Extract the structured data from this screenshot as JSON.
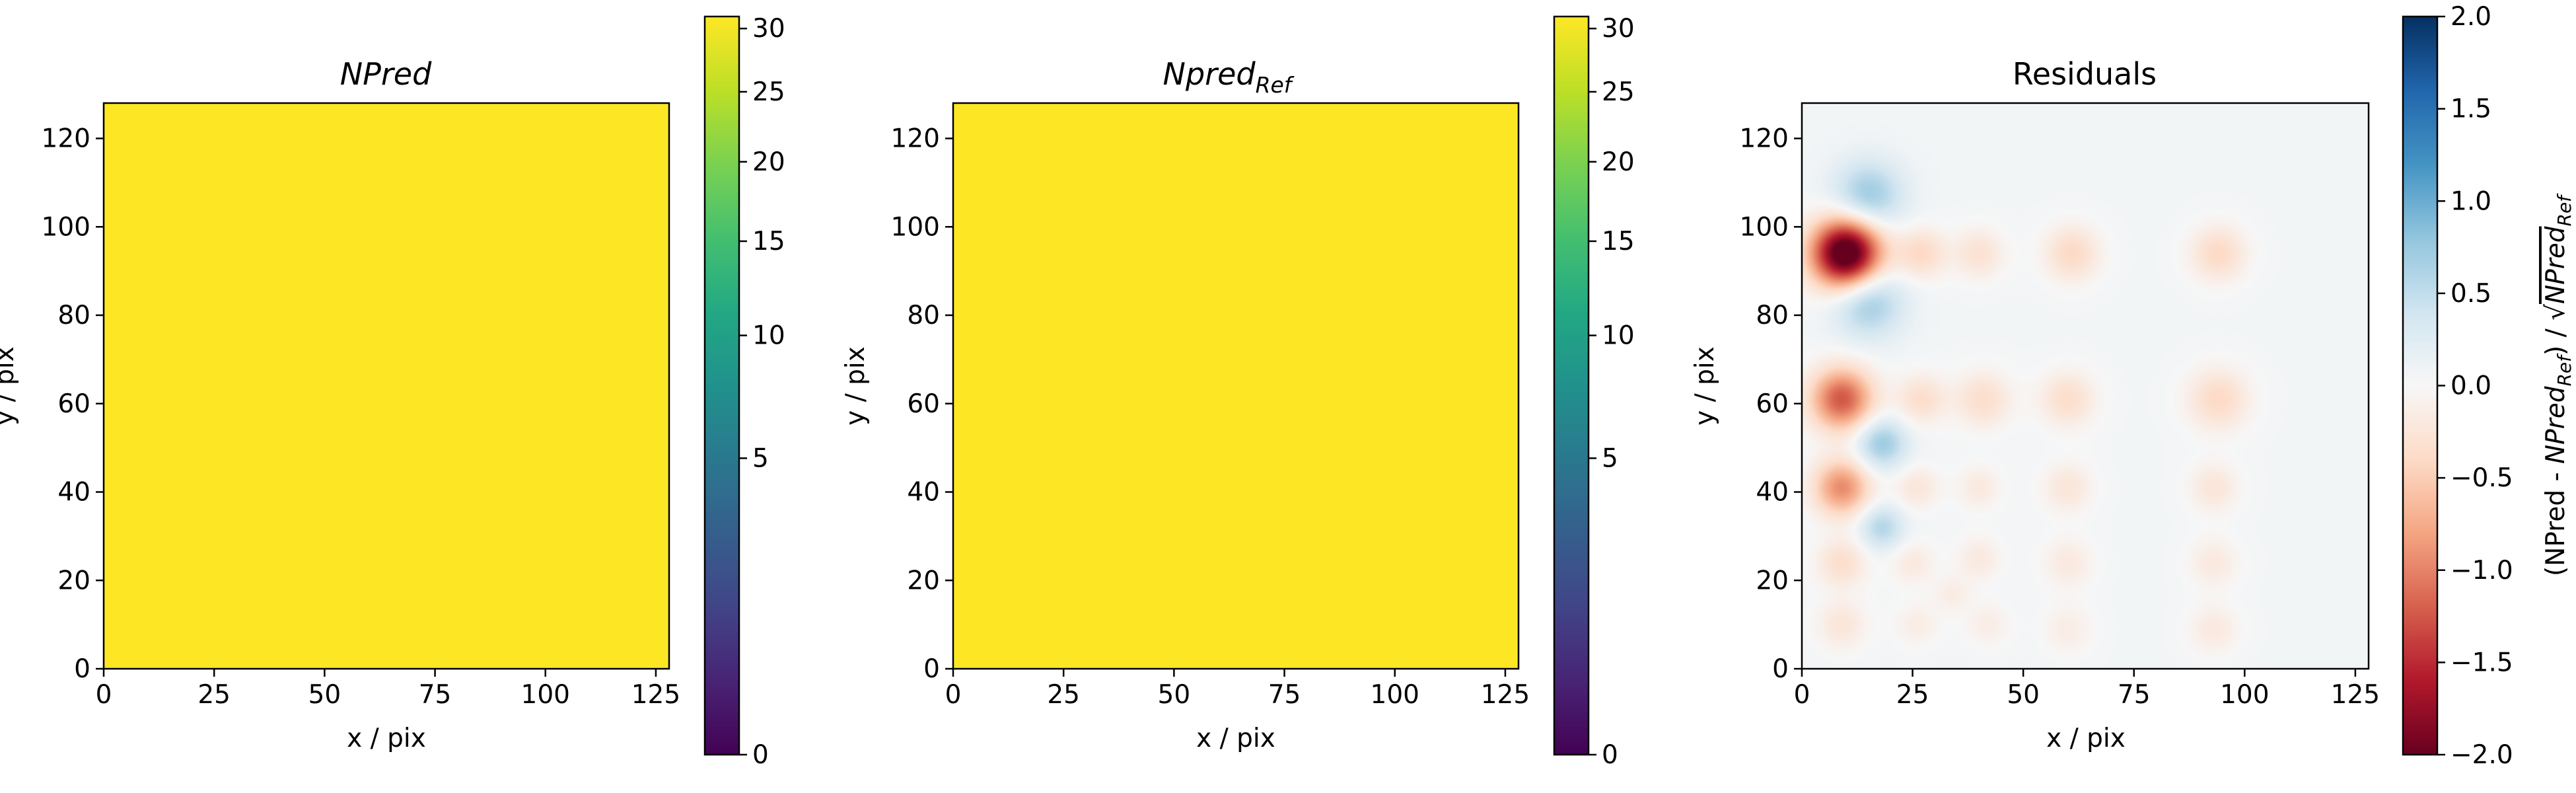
{
  "colors": {
    "viridis_top": "#fde725",
    "viridis_bottom": "#440154",
    "rdbu_low": "#67001f",
    "rdbu_mid": "#f7f7f7",
    "rdbu_high": "#053061"
  },
  "chart_data": [
    {
      "type": "heatmap",
      "title": "NPred",
      "title_italic": true,
      "xlabel": "x / pix",
      "ylabel": "y / pix",
      "xlim": [
        0,
        128
      ],
      "ylim": [
        0,
        128
      ],
      "xticks": [
        0,
        25,
        50,
        75,
        100,
        125
      ],
      "yticks": [
        0,
        20,
        40,
        60,
        80,
        100,
        120
      ],
      "colormap": "viridis",
      "colorbar": {
        "scale": "sqrt",
        "range": [
          0,
          31
        ],
        "ticks": [
          0,
          5,
          10,
          15,
          20,
          25,
          30
        ],
        "label": ""
      },
      "field": {
        "kind": "uniform",
        "value": 31
      }
    },
    {
      "type": "heatmap",
      "title": "Npred",
      "title_sub": "Ref",
      "title_italic": true,
      "xlabel": "x / pix",
      "ylabel": "y / pix",
      "xlim": [
        0,
        128
      ],
      "ylim": [
        0,
        128
      ],
      "xticks": [
        0,
        25,
        50,
        75,
        100,
        125
      ],
      "yticks": [
        0,
        20,
        40,
        60,
        80,
        100,
        120
      ],
      "colormap": "viridis",
      "colorbar": {
        "scale": "sqrt",
        "range": [
          0,
          31
        ],
        "ticks": [
          0,
          5,
          10,
          15,
          20,
          25,
          30
        ],
        "label": ""
      },
      "field": {
        "kind": "uniform",
        "value": 31
      }
    },
    {
      "type": "heatmap",
      "title": "Residuals",
      "xlabel": "x / pix",
      "ylabel": "y / pix",
      "xlim": [
        0,
        128
      ],
      "ylim": [
        0,
        128
      ],
      "xticks": [
        0,
        25,
        50,
        75,
        100,
        125
      ],
      "yticks": [
        0,
        20,
        40,
        60,
        80,
        100,
        120
      ],
      "colormap": "RdBu",
      "colorbar": {
        "scale": "linear",
        "range": [
          -2.0,
          2.0
        ],
        "ticks": [
          -2.0,
          -1.5,
          -1.0,
          -0.5,
          0.0,
          0.5,
          1.0,
          1.5,
          2.0
        ],
        "tick_labels": [
          "−2.0",
          "−1.5",
          "−1.0",
          "−0.5",
          "0.0",
          "0.5",
          "1.0",
          "1.5",
          "2.0"
        ],
        "label_parts": [
          "(NPred - ",
          "NPred",
          "Ref",
          ") / √",
          "NPred",
          "Ref"
        ]
      },
      "field": {
        "kind": "gaussian_blobs",
        "background": 0.05,
        "blobs": [
          {
            "x": 10,
            "y": 94,
            "sigma": 5.5,
            "amp": -2.4
          },
          {
            "x": 27,
            "y": 94,
            "sigma": 4.0,
            "amp": -0.45
          },
          {
            "x": 40,
            "y": 94,
            "sigma": 4.0,
            "amp": -0.35
          },
          {
            "x": 61,
            "y": 94,
            "sigma": 4.5,
            "amp": -0.45
          },
          {
            "x": 94,
            "y": 94,
            "sigma": 4.5,
            "amp": -0.45
          },
          {
            "x": 15,
            "y": 107,
            "sigma": 5.5,
            "amp": 0.7
          },
          {
            "x": 15,
            "y": 83,
            "sigma": 5.5,
            "amp": 0.7
          },
          {
            "x": 9,
            "y": 61,
            "sigma": 5.0,
            "amp": -1.3
          },
          {
            "x": 27,
            "y": 61,
            "sigma": 4.0,
            "amp": -0.4
          },
          {
            "x": 41,
            "y": 61,
            "sigma": 4.5,
            "amp": -0.4
          },
          {
            "x": 60,
            "y": 61,
            "sigma": 4.5,
            "amp": -0.4
          },
          {
            "x": 94,
            "y": 61,
            "sigma": 5.0,
            "amp": -0.45
          },
          {
            "x": 18,
            "y": 51,
            "sigma": 4.0,
            "amp": 0.7
          },
          {
            "x": 9,
            "y": 41,
            "sigma": 4.5,
            "amp": -1.0
          },
          {
            "x": 26,
            "y": 41,
            "sigma": 3.5,
            "amp": -0.3
          },
          {
            "x": 40,
            "y": 41,
            "sigma": 3.5,
            "amp": -0.25
          },
          {
            "x": 60,
            "y": 41,
            "sigma": 4.0,
            "amp": -0.3
          },
          {
            "x": 93,
            "y": 41,
            "sigma": 4.0,
            "amp": -0.3
          },
          {
            "x": 18,
            "y": 32,
            "sigma": 3.5,
            "amp": 0.55
          },
          {
            "x": 9,
            "y": 24,
            "sigma": 4.0,
            "amp": -0.4
          },
          {
            "x": 9,
            "y": 10,
            "sigma": 4.0,
            "amp": -0.3
          },
          {
            "x": 25,
            "y": 24,
            "sigma": 3.5,
            "amp": -0.25
          },
          {
            "x": 40,
            "y": 25,
            "sigma": 3.5,
            "amp": -0.25
          },
          {
            "x": 60,
            "y": 24,
            "sigma": 4.0,
            "amp": -0.25
          },
          {
            "x": 93,
            "y": 24,
            "sigma": 4.0,
            "amp": -0.25
          },
          {
            "x": 26,
            "y": 10,
            "sigma": 3.5,
            "amp": -0.2
          },
          {
            "x": 42,
            "y": 10,
            "sigma": 3.5,
            "amp": -0.2
          },
          {
            "x": 60,
            "y": 9,
            "sigma": 4.0,
            "amp": -0.2
          },
          {
            "x": 93,
            "y": 9,
            "sigma": 4.0,
            "amp": -0.25
          },
          {
            "x": 34,
            "y": 17,
            "sigma": 3.0,
            "amp": -0.2
          }
        ]
      }
    }
  ]
}
